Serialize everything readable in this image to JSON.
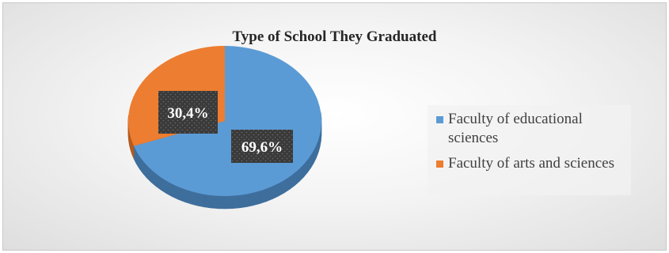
{
  "chart_data": {
    "type": "pie",
    "title": "Type of School They Graduated",
    "categories": [
      "Faculty of educational sciences",
      "Faculty of arts and sciences"
    ],
    "values": [
      69.6,
      30.4
    ],
    "data_labels": [
      "69,6%",
      "30,4%"
    ],
    "colors": [
      "#5B9BD5",
      "#ED7D31"
    ],
    "legend_position": "right",
    "style": "3d"
  }
}
